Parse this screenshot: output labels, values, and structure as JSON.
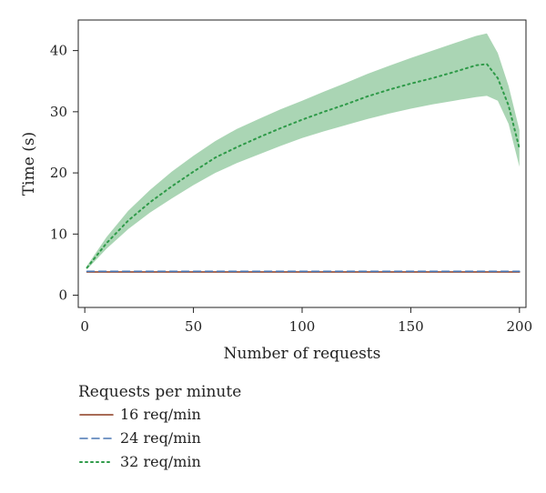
{
  "chart_data": {
    "type": "line",
    "xlabel": "Number of requests",
    "ylabel": "Time (s)",
    "xlim": [
      -3,
      203
    ],
    "ylim": [
      -2,
      45
    ],
    "xticks": [
      0,
      50,
      100,
      150,
      200
    ],
    "yticks": [
      0,
      10,
      20,
      30,
      40
    ],
    "grid": false,
    "legend": {
      "title": "Requests per minute",
      "placement": "below-left"
    },
    "series": [
      {
        "name": "16 req/min",
        "color": "#8c3a1e",
        "style": "solid",
        "x": [
          1,
          25,
          50,
          75,
          100,
          125,
          150,
          175,
          200
        ],
        "y": [
          3.8,
          3.8,
          3.8,
          3.8,
          3.8,
          3.8,
          3.8,
          3.8,
          3.8
        ]
      },
      {
        "name": "24 req/min",
        "color": "#4a77b4",
        "style": "dashed",
        "x": [
          1,
          25,
          50,
          75,
          100,
          125,
          150,
          175,
          200
        ],
        "y": [
          3.9,
          3.9,
          3.9,
          3.9,
          3.9,
          3.9,
          3.9,
          3.9,
          3.9
        ]
      },
      {
        "name": "32 req/min",
        "color": "#2e9a48",
        "band_color": "#7cbf8c",
        "style": "dotted",
        "x": [
          1,
          10,
          20,
          30,
          40,
          50,
          60,
          70,
          80,
          90,
          100,
          110,
          120,
          130,
          140,
          150,
          160,
          170,
          180,
          185,
          190,
          195,
          200
        ],
        "y": [
          4.5,
          8.5,
          12.2,
          15.2,
          17.8,
          20.2,
          22.5,
          24.2,
          25.8,
          27.3,
          28.7,
          30.0,
          31.2,
          32.5,
          33.6,
          34.6,
          35.5,
          36.5,
          37.6,
          37.8,
          35.5,
          31.0,
          24.0
        ],
        "lower": [
          4.2,
          7.6,
          10.8,
          13.5,
          15.8,
          18.0,
          20.0,
          21.6,
          23.0,
          24.4,
          25.7,
          26.8,
          27.8,
          28.8,
          29.7,
          30.5,
          31.2,
          31.8,
          32.4,
          32.6,
          31.8,
          28.0,
          21.0
        ],
        "upper": [
          4.8,
          9.5,
          13.8,
          17.2,
          20.2,
          22.8,
          25.2,
          27.2,
          28.8,
          30.4,
          31.8,
          33.3,
          34.7,
          36.2,
          37.5,
          38.8,
          40.0,
          41.2,
          42.4,
          42.8,
          39.6,
          34.2,
          27.0
        ]
      }
    ]
  }
}
